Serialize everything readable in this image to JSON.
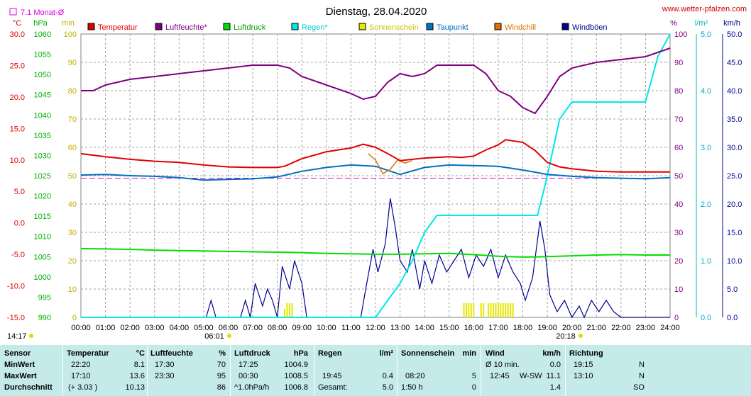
{
  "header": {
    "title": "Dienstag, 28.04.2020",
    "site": "www.wetter-pfalzen.com",
    "monthly_avg": "7.1 Monat-Ø"
  },
  "units": {
    "left": [
      "°C",
      "hPa",
      "min"
    ],
    "right": [
      "%",
      "l/m²",
      "km/h"
    ]
  },
  "colors": {
    "Temperatur": "#e00000",
    "Luftfeuchte": "#800080",
    "Luftdruck": "#00e000",
    "Regen": "#00e8e8",
    "Sonnenschein": "#e8e800",
    "Taupunkt": "#0070c0",
    "Windchill": "#e07000",
    "Windböen": "#000090",
    "monthly_avg": "#e000e0"
  },
  "chart_data": {
    "type": "line",
    "x_labels": [
      "00:00",
      "01:00",
      "02:00",
      "03:00",
      "04:00",
      "05:00",
      "06:00",
      "07:00",
      "08:00",
      "09:00",
      "10:00",
      "11:00",
      "12:00",
      "13:00",
      "14:00",
      "15:00",
      "16:00",
      "17:00",
      "18:00",
      "19:00",
      "20:00",
      "21:00",
      "22:00",
      "23:00",
      "24:00"
    ],
    "sunrise": "06:01",
    "sunset": "20:18",
    "legend": [
      "Temperatur",
      "Luftfeuchte*",
      "Luftdruck",
      "Regen*",
      "Sonnenschein",
      "Taupunkt",
      "Windchill",
      "Windböen"
    ],
    "axes": {
      "temperature_c": {
        "range": [
          -15,
          30
        ],
        "ticks": [
          "30.0",
          "25.0",
          "20.0",
          "15.0",
          "10.0",
          "5.0",
          "0.0",
          "-5.0",
          "-10.0",
          "-15.0"
        ]
      },
      "pressure_hpa": {
        "range": [
          990,
          1060
        ],
        "ticks": [
          "1060",
          "1055",
          "1050",
          "1045",
          "1040",
          "1035",
          "1030",
          "1025",
          "1020",
          "1015",
          "1010",
          "1005",
          "1000",
          "995",
          "990"
        ]
      },
      "sunshine_min": {
        "range": [
          0,
          100
        ],
        "ticks": [
          "100",
          "90",
          "80",
          "70",
          "60",
          "50",
          "40",
          "30",
          "20",
          "10",
          "0"
        ]
      },
      "humidity_pct": {
        "range": [
          0,
          100
        ],
        "ticks": [
          "100",
          "90",
          "80",
          "70",
          "60",
          "50",
          "40",
          "30",
          "20",
          "10",
          "0"
        ]
      },
      "rain_lm2": {
        "range": [
          0,
          5
        ],
        "ticks": [
          "5.0",
          "4.0",
          "3.0",
          "2.0",
          "1.0",
          "0.0"
        ]
      },
      "wind_kmh": {
        "range": [
          0,
          50
        ],
        "ticks": [
          "50.0",
          "45.0",
          "40.0",
          "35.0",
          "30.0",
          "25.0",
          "20.0",
          "15.0",
          "10.0",
          "5.0",
          "0.0"
        ]
      }
    },
    "monthly_avg_temp": 7.1,
    "series": [
      {
        "name": "Temperatur",
        "axis": "temperature_c",
        "x": [
          0,
          1,
          2,
          3,
          4,
          5,
          6,
          7,
          8,
          8.3,
          9,
          10,
          11,
          11.5,
          12,
          12.5,
          13,
          14,
          15,
          15.5,
          16,
          16.5,
          17,
          17.3,
          18,
          18.5,
          19,
          19.5,
          20,
          21,
          22,
          23,
          24
        ],
        "y": [
          11.0,
          10.5,
          10.1,
          9.8,
          9.6,
          9.2,
          8.9,
          8.8,
          8.8,
          9.0,
          10.2,
          11.3,
          11.9,
          12.5,
          12.0,
          11.0,
          9.9,
          10.3,
          10.5,
          10.4,
          10.6,
          11.6,
          12.4,
          13.2,
          12.8,
          11.5,
          9.6,
          8.9,
          8.6,
          8.2,
          8.1,
          8.1,
          8.1
        ]
      },
      {
        "name": "Luftfeuchte*",
        "axis": "humidity_pct",
        "x": [
          0,
          0.5,
          1,
          2,
          3,
          4,
          5,
          6,
          7,
          8,
          8.5,
          9,
          10,
          11,
          11.5,
          12,
          12.5,
          13,
          13.5,
          14,
          14.5,
          15,
          16,
          16.5,
          17,
          17.5,
          18,
          18.5,
          19,
          19.5,
          20,
          21,
          22,
          23,
          24
        ],
        "y": [
          80,
          80,
          82,
          84,
          85,
          86,
          87,
          88,
          89,
          89,
          88,
          85,
          82,
          79,
          77,
          78,
          83,
          86,
          85,
          86,
          89,
          89,
          89,
          86,
          80,
          78,
          74,
          72,
          78,
          85,
          88,
          90,
          91,
          92,
          95
        ]
      },
      {
        "name": "Luftdruck",
        "axis": "pressure_hpa",
        "x": [
          0,
          1,
          2,
          3,
          4,
          5,
          6,
          7,
          8,
          9,
          10,
          11,
          12,
          13,
          14,
          15,
          16,
          17,
          18,
          19,
          20,
          21,
          22,
          23,
          24
        ],
        "y": [
          1007.0,
          1006.9,
          1006.8,
          1006.6,
          1006.5,
          1006.4,
          1006.3,
          1006.2,
          1006.1,
          1006.0,
          1005.8,
          1005.7,
          1005.6,
          1005.6,
          1005.7,
          1005.8,
          1005.5,
          1005.1,
          1004.9,
          1005.0,
          1005.2,
          1005.4,
          1005.5,
          1005.4,
          1005.4
        ]
      },
      {
        "name": "Regen*",
        "axis": "rain_lm2",
        "x": [
          0,
          12.0,
          12.5,
          13,
          13.5,
          14,
          14.5,
          15,
          16,
          17,
          18,
          18.6,
          19,
          19.5,
          20,
          21,
          22,
          23,
          23.5,
          24
        ],
        "y": [
          0,
          0,
          0.3,
          0.6,
          1.0,
          1.5,
          1.8,
          1.8,
          1.8,
          1.8,
          1.8,
          1.8,
          2.5,
          3.5,
          3.8,
          3.8,
          3.8,
          3.8,
          4.6,
          5.0
        ]
      },
      {
        "name": "Taupunkt",
        "axis": "temperature_c",
        "x": [
          0,
          1,
          2,
          3,
          4,
          5,
          6,
          7,
          8,
          9,
          10,
          11,
          12,
          13,
          14,
          15,
          16,
          17,
          18,
          19,
          20,
          21,
          22,
          23,
          24
        ],
        "y": [
          7.6,
          7.7,
          7.5,
          7.4,
          7.2,
          6.8,
          6.9,
          7.0,
          7.3,
          8.2,
          8.8,
          9.2,
          9.0,
          7.7,
          8.8,
          9.2,
          9.1,
          9.0,
          8.4,
          7.7,
          7.4,
          7.2,
          7.1,
          7.0,
          7.2
        ]
      },
      {
        "name": "Windchill",
        "axis": "temperature_c",
        "x": [
          11.7,
          12,
          12.3,
          12.6,
          12.9,
          13.2,
          13.5
        ],
        "y": [
          11.0,
          10.0,
          7.8,
          8.5,
          10.0,
          9.5,
          9.9
        ]
      },
      {
        "name": "Windböen",
        "axis": "wind_kmh",
        "x": [
          0,
          5.1,
          5.3,
          5.5,
          5.7,
          6.5,
          6.7,
          6.9,
          7.1,
          7.4,
          7.6,
          7.8,
          8.0,
          8.2,
          8.5,
          8.7,
          9.0,
          9.2,
          11.4,
          11.6,
          11.9,
          12.1,
          12.4,
          12.6,
          12.8,
          13.0,
          13.3,
          13.5,
          13.8,
          14.0,
          14.3,
          14.6,
          14.9,
          15.2,
          15.5,
          15.8,
          16.1,
          16.4,
          16.7,
          17.0,
          17.3,
          17.6,
          17.9,
          18.1,
          18.4,
          18.7,
          18.9,
          19.1,
          19.4,
          19.7,
          20.0,
          20.3,
          20.5,
          20.8,
          21.1,
          21.4,
          21.7,
          22.0,
          24
        ],
        "y": [
          0,
          0,
          3,
          0,
          0,
          0,
          3,
          0,
          6,
          2,
          5,
          3,
          0,
          9,
          5,
          10,
          6,
          0,
          0,
          5,
          12,
          8,
          13,
          21,
          16,
          10,
          8,
          12,
          5,
          10,
          6,
          11,
          8,
          10,
          12,
          7,
          11,
          9,
          12,
          7,
          11,
          8,
          6,
          3,
          7,
          17,
          12,
          4,
          1,
          3,
          0,
          2,
          0,
          3,
          1,
          3,
          1,
          0,
          0
        ]
      }
    ],
    "sunshine_bars": {
      "axis": "sunshine_min",
      "x": [
        8.3,
        8.4,
        8.5,
        8.6,
        15.6,
        15.7,
        15.8,
        15.9,
        16.0,
        16.3,
        16.4,
        16.6,
        16.7,
        16.8,
        16.9,
        17.0,
        17.1,
        17.2,
        17.3,
        17.4,
        17.5,
        17.6
      ],
      "y": [
        3,
        5,
        5,
        5,
        5,
        5,
        5,
        5,
        5,
        5,
        5,
        5,
        5,
        5,
        5,
        5,
        5,
        5,
        5,
        5,
        5,
        5
      ]
    },
    "time_left": "14:17",
    "time_right": "20:18"
  },
  "table": {
    "rows": [
      "Sensor",
      "MinWert",
      "MaxWert",
      "Durchschnitt"
    ],
    "temperatur": {
      "header": "Temperatur",
      "unit": "°C",
      "min_time": "22:20",
      "min_val": "8.1",
      "max_time": "17:10",
      "max_val": "13.6",
      "avg_note": "(+ 3.03 )",
      "avg_val": "10.13"
    },
    "luftfeuchte": {
      "header": "Luftfeuchte",
      "unit": "%",
      "min_time": "17:30",
      "min_val": "70",
      "max_time": "23:30",
      "max_val": "95",
      "avg_val": "86"
    },
    "luftdruck": {
      "header": "Luftdruck",
      "unit": "hPa",
      "min_time": "17:25",
      "min_val": "1004.9",
      "max_time": "00:30",
      "max_val": "1008.5",
      "avg_note": "^1.0hPa/h",
      "avg_val": "1006.8"
    },
    "regen": {
      "header": "Regen",
      "unit": "l/m²",
      "max_time": "19:45",
      "max_val": "0.4",
      "avg_note": "Gesamt:",
      "avg_val": "5.0"
    },
    "sonne": {
      "header": "Sonnenschein",
      "unit": "min",
      "max_time": "08:20",
      "max_val": "5",
      "avg_note": "1:50 h",
      "avg_val": "0"
    },
    "wind": {
      "header": "Wind",
      "unit": "km/h",
      "min_note": "Ø 10 min.",
      "min_val": "0.0",
      "max_time": "12:45",
      "max_note": "W-SW",
      "max_val": "11.1",
      "avg_val": "1.4"
    },
    "richtung": {
      "header": "Richtung",
      "min_time": "19:15",
      "min_val": "N",
      "max_time": "13:10",
      "max_val": "N",
      "avg_val": "SO"
    }
  }
}
